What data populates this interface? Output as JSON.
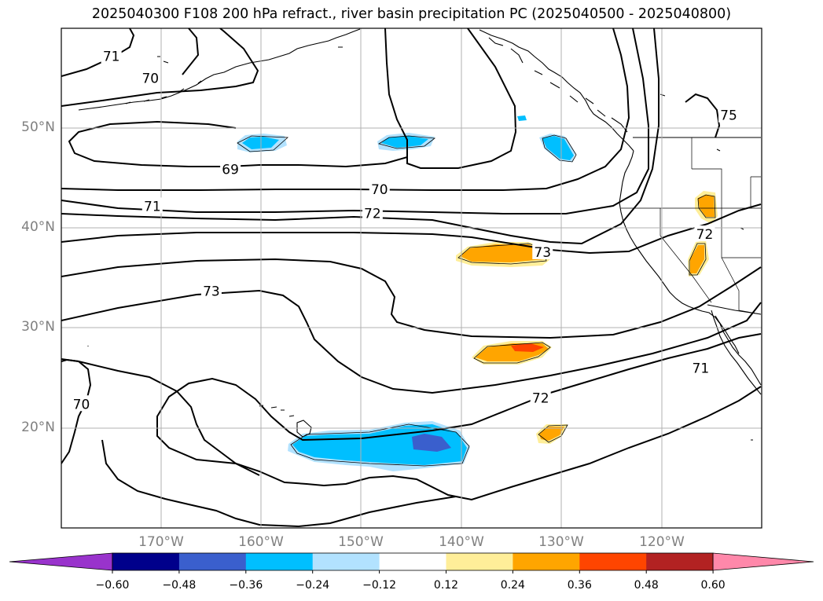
{
  "title": "2025040300 F108 200 hPa refract., river basin precipitation PC (2025040500 - 2025040800)",
  "map": {
    "extent": {
      "lon": [
        -180,
        -110
      ],
      "lat": [
        10,
        60
      ]
    },
    "gridlines": true,
    "lat_labels": [
      "50°N",
      "40°N",
      "30°N",
      "20°N"
    ],
    "lat_values": [
      50,
      40,
      30,
      20
    ],
    "lon_labels": [
      "170°W",
      "160°W",
      "150°W",
      "140°W",
      "130°W",
      "120°W"
    ],
    "lon_values": [
      -170,
      -160,
      -150,
      -140,
      -130,
      -120
    ]
  },
  "contour_labels": [
    {
      "text": "71",
      "lon": -175,
      "lat": 57.2
    },
    {
      "text": "70",
      "lon": -171.1,
      "lat": 55.0
    },
    {
      "text": "69",
      "lon": -163.1,
      "lat": 45.9
    },
    {
      "text": "70",
      "lon": -148.2,
      "lat": 43.9
    },
    {
      "text": "71",
      "lon": -170.9,
      "lat": 42.2
    },
    {
      "text": "72",
      "lon": -148.9,
      "lat": 41.5
    },
    {
      "text": "73",
      "lon": -165.0,
      "lat": 33.7
    },
    {
      "text": "73",
      "lon": -131.9,
      "lat": 37.6
    },
    {
      "text": "72",
      "lon": -132.1,
      "lat": 23.0
    },
    {
      "text": "71",
      "lon": -116.1,
      "lat": 26.0
    },
    {
      "text": "70",
      "lon": -178.0,
      "lat": 22.4
    },
    {
      "text": "75",
      "lon": -113.3,
      "lat": 51.3
    },
    {
      "text": "72",
      "lon": -115.7,
      "lat": 39.4
    }
  ],
  "colorbar": {
    "colors": [
      "#9933cc",
      "#00008b",
      "#3a5fcd",
      "#00bfff",
      "#b2e2ff",
      "#ffffff",
      "#ffee99",
      "#ffa500",
      "#ff4500",
      "#b22222",
      "#ff88aa"
    ],
    "tick_labels": [
      "−0.60",
      "−0.48",
      "−0.36",
      "−0.24",
      "−0.12",
      "0.12",
      "0.24",
      "0.36",
      "0.48",
      "0.60"
    ]
  }
}
